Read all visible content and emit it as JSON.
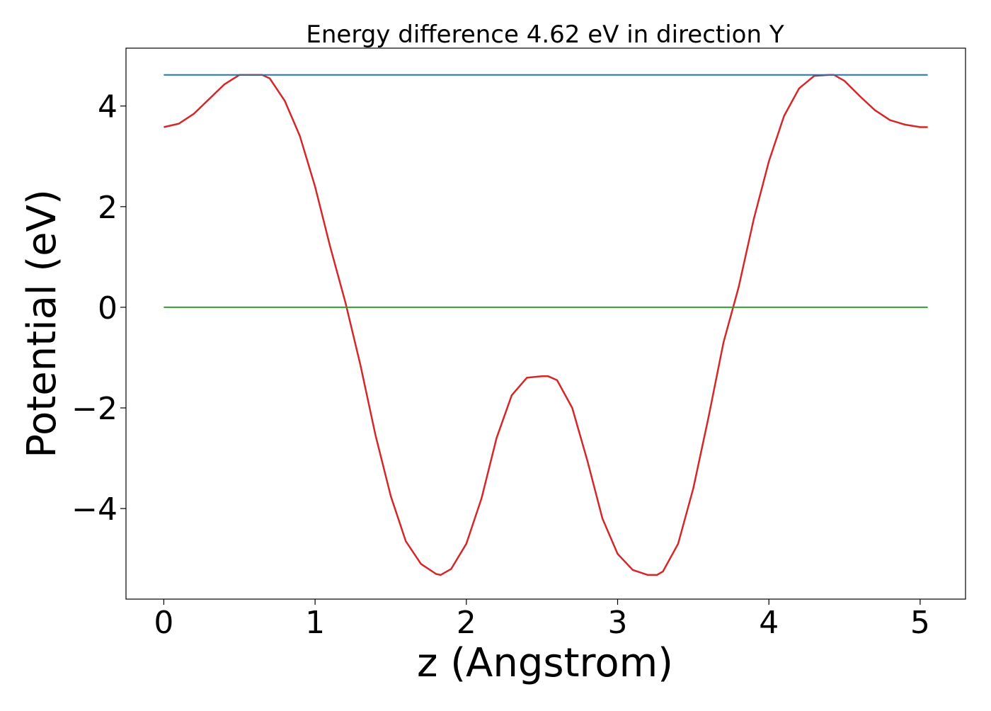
{
  "chart_data": {
    "type": "line",
    "title": "Energy difference 4.62 eV in direction Y",
    "xlabel": "z (Angstrom)",
    "ylabel": "Potential (eV)",
    "xlim": [
      -0.25,
      5.3
    ],
    "ylim": [
      -5.8,
      5.15
    ],
    "xticks": [
      0,
      1,
      2,
      3,
      4,
      5
    ],
    "xtick_labels": [
      "0",
      "1",
      "2",
      "3",
      "4",
      "5"
    ],
    "yticks": [
      -4,
      -2,
      0,
      2,
      4
    ],
    "ytick_labels": [
      "−4",
      "−2",
      "0",
      "2",
      "4"
    ],
    "grid": false,
    "series": [
      {
        "color": "#d62728",
        "x": [
          0,
          0.1,
          0.2,
          0.3,
          0.4,
          0.5,
          0.6,
          0.65,
          0.7,
          0.8,
          0.9,
          1.0,
          1.1,
          1.2,
          1.3,
          1.4,
          1.5,
          1.6,
          1.7,
          1.8,
          1.83,
          1.9,
          2.0,
          2.1,
          2.2,
          2.3,
          2.4,
          2.5,
          2.54,
          2.6,
          2.7,
          2.8,
          2.9,
          3.0,
          3.1,
          3.2,
          3.26,
          3.3,
          3.4,
          3.5,
          3.6,
          3.7,
          3.8,
          3.9,
          4.0,
          4.1,
          4.2,
          4.3,
          4.4,
          4.43,
          4.5,
          4.6,
          4.7,
          4.8,
          4.9,
          5.0,
          5.05
        ],
        "y": [
          3.58,
          3.65,
          3.85,
          4.14,
          4.43,
          4.62,
          4.62,
          4.62,
          4.55,
          4.1,
          3.4,
          2.4,
          1.2,
          0.1,
          -1.15,
          -2.55,
          -3.75,
          -4.65,
          -5.1,
          -5.3,
          -5.32,
          -5.2,
          -4.7,
          -3.8,
          -2.6,
          -1.75,
          -1.4,
          -1.37,
          -1.37,
          -1.45,
          -2.0,
          -3.05,
          -4.2,
          -4.9,
          -5.22,
          -5.32,
          -5.32,
          -5.25,
          -4.7,
          -3.6,
          -2.2,
          -0.7,
          0.4,
          1.75,
          2.9,
          3.8,
          4.35,
          4.6,
          4.62,
          4.62,
          4.5,
          4.2,
          3.92,
          3.72,
          3.63,
          3.58,
          3.58
        ]
      },
      {
        "color": "#1f77b4",
        "x": [
          0,
          5.05
        ],
        "y": [
          4.62,
          4.62
        ]
      },
      {
        "color": "#2ca02c",
        "x": [
          0,
          5.05
        ],
        "y": [
          0.0,
          0.0
        ]
      }
    ]
  }
}
